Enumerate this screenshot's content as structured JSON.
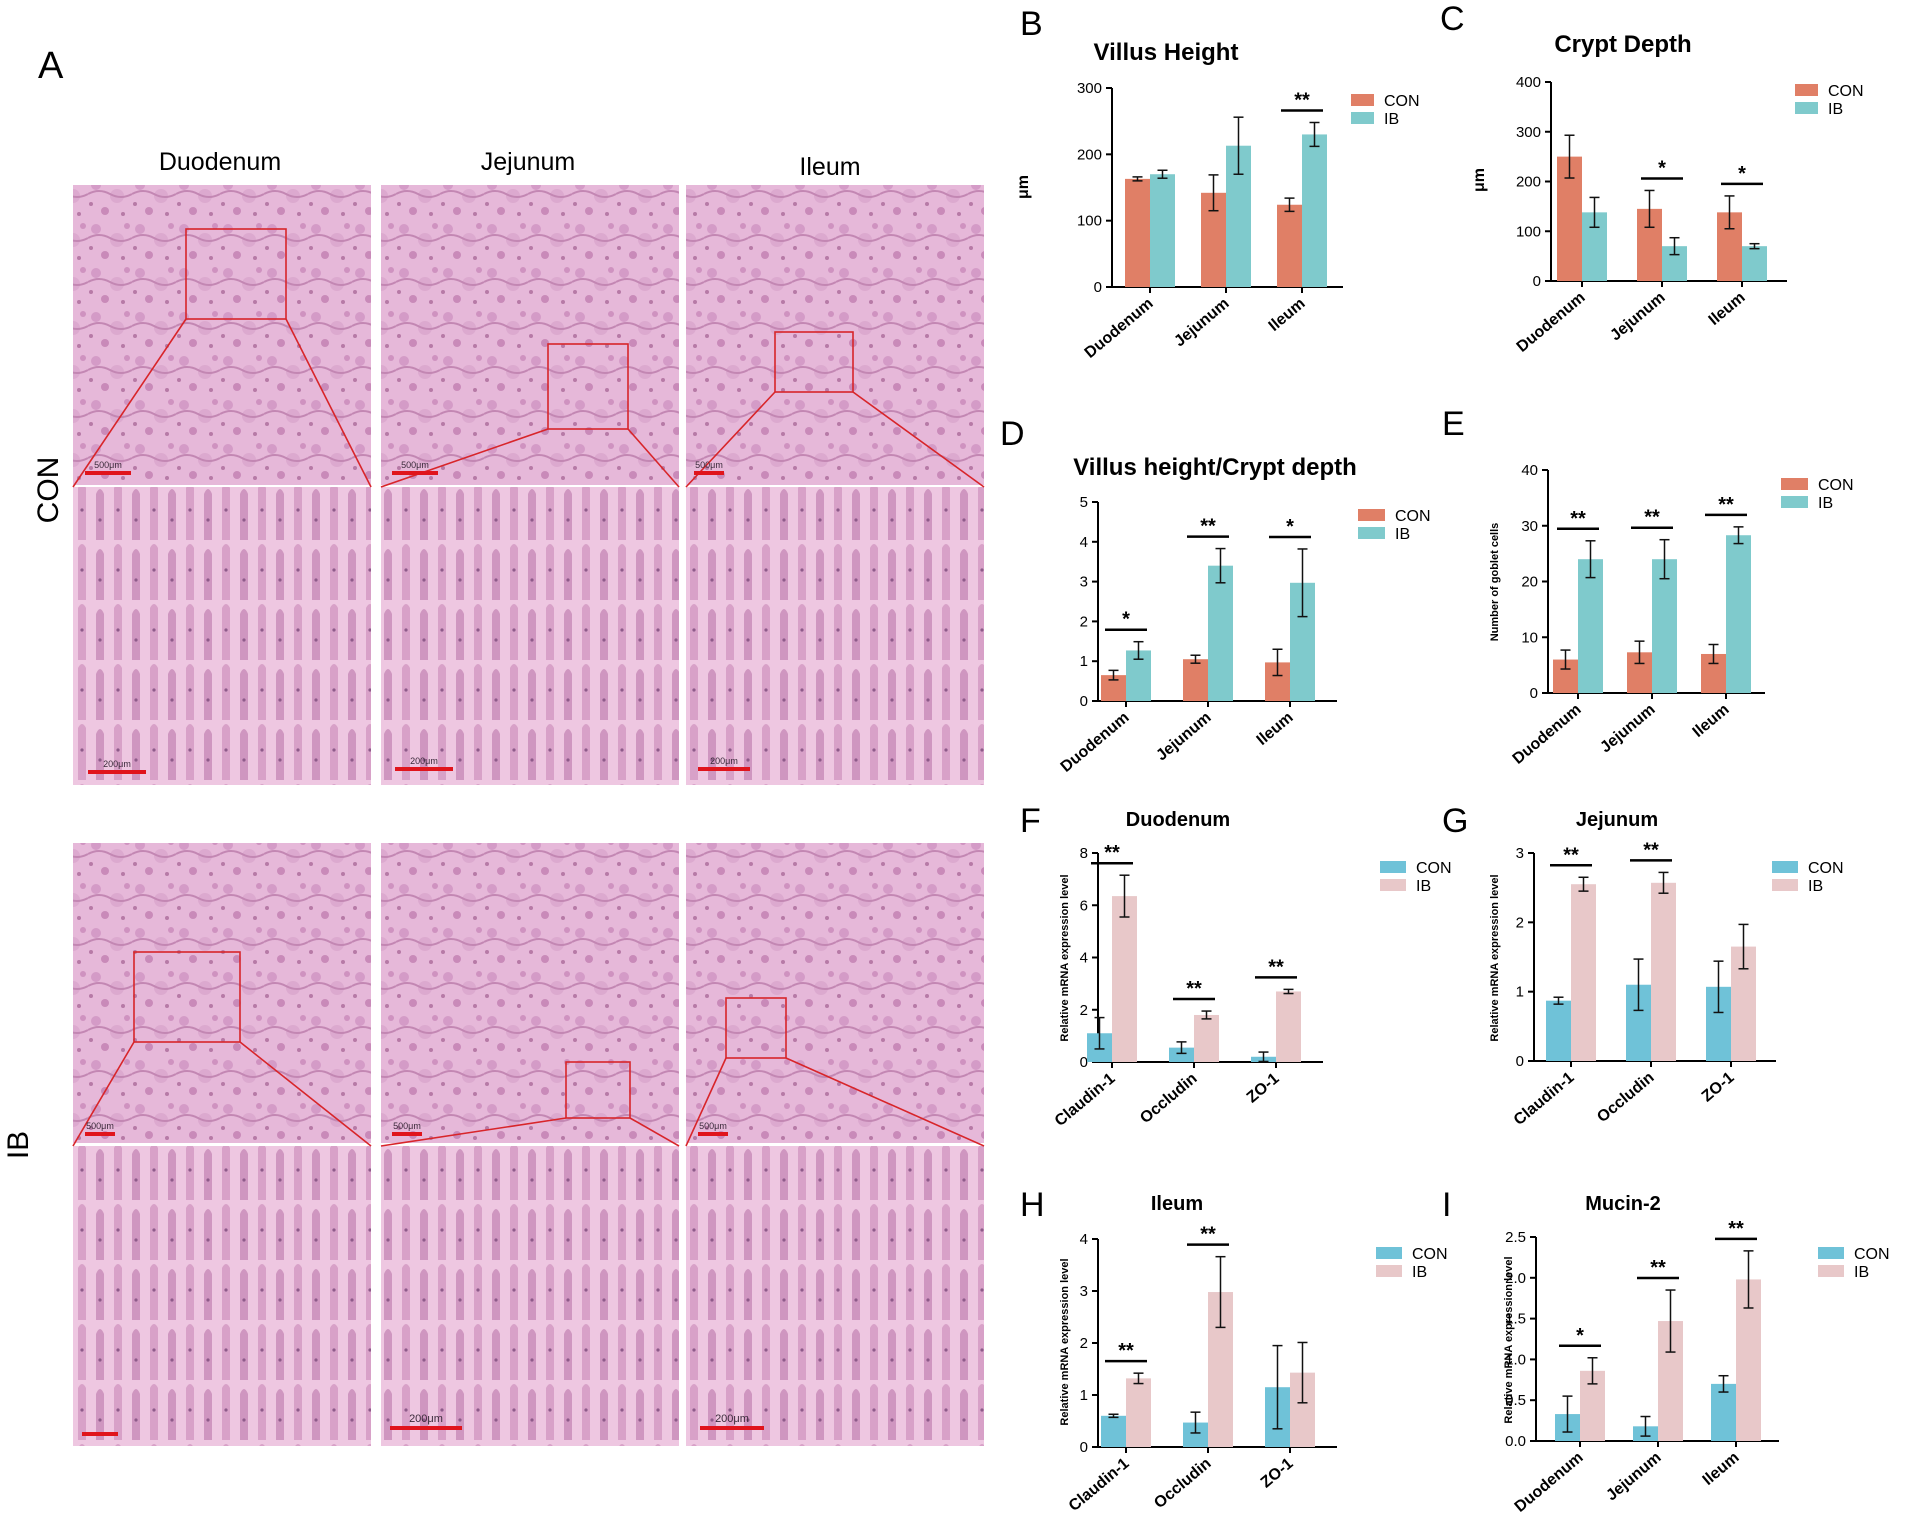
{
  "histology": {
    "panel_letter": "A",
    "columns": [
      "Duodenum",
      "Jejunum",
      "Ileum"
    ],
    "rows": [
      "CON",
      "IB"
    ],
    "scale_overview": [
      "500μm",
      "500μm",
      "500μm"
    ],
    "scale_detail": [
      "200μm",
      "200μm",
      "200μm"
    ]
  },
  "colors": {
    "con_morph": "#e07f66",
    "ib_morph": "#7fcacc",
    "con_mrna": "#6fc2d8",
    "ib_mrna": "#e8c8c9",
    "bracket": "#000000"
  },
  "chart_data": [
    {
      "id": "B",
      "type": "bar",
      "title": "Villus Height",
      "ylabel": "μm",
      "xlabel": "",
      "categories": [
        "Duodenum",
        "Jejunum",
        "Ileum"
      ],
      "ylim": [
        0,
        300
      ],
      "yticks": [
        "0",
        "100",
        "200",
        "300"
      ],
      "series": [
        {
          "name": "CON",
          "values": [
            163,
            142,
            124
          ],
          "errors": [
            3,
            27,
            10
          ]
        },
        {
          "name": "IB",
          "values": [
            170,
            213,
            230
          ],
          "errors": [
            6,
            43,
            18
          ]
        }
      ],
      "significance": [
        "",
        "",
        "**"
      ],
      "legend": "top-right"
    },
    {
      "id": "C",
      "type": "bar",
      "title": "Crypt Depth",
      "ylabel": "μm",
      "xlabel": "",
      "categories": [
        "Duodenum",
        "Jejunum",
        "Ileum"
      ],
      "ylim": [
        0,
        400
      ],
      "yticks": [
        "0",
        "100",
        "200",
        "300",
        "400"
      ],
      "series": [
        {
          "name": "CON",
          "values": [
            250,
            145,
            138
          ],
          "errors": [
            43,
            37,
            33
          ]
        },
        {
          "name": "IB",
          "values": [
            138,
            70,
            70
          ],
          "errors": [
            30,
            17,
            5
          ]
        }
      ],
      "significance": [
        "",
        "*",
        "*"
      ],
      "legend": "top-right"
    },
    {
      "id": "D",
      "type": "bar",
      "title": "Villus height/Crypt depth",
      "ylabel": "",
      "xlabel": "",
      "categories": [
        "Duodenum",
        "Jejunum",
        "Ileum"
      ],
      "ylim": [
        0,
        5
      ],
      "yticks": [
        "0",
        "1",
        "2",
        "3",
        "4",
        "5"
      ],
      "series": [
        {
          "name": "CON",
          "values": [
            0.65,
            1.05,
            0.97
          ],
          "errors": [
            0.12,
            0.1,
            0.33
          ]
        },
        {
          "name": "IB",
          "values": [
            1.27,
            3.4,
            2.97
          ],
          "errors": [
            0.22,
            0.43,
            0.85
          ]
        }
      ],
      "significance": [
        "*",
        "**",
        "*"
      ],
      "legend": "top-right"
    },
    {
      "id": "E",
      "type": "bar",
      "title": "",
      "ylabel": "Number of goblet cells",
      "xlabel": "",
      "categories": [
        "Duodenum",
        "Jejunum",
        "Ileum"
      ],
      "ylim": [
        0,
        40
      ],
      "yticks": [
        "0",
        "10",
        "20",
        "30",
        "40"
      ],
      "series": [
        {
          "name": "CON",
          "values": [
            6,
            7.3,
            7
          ],
          "errors": [
            1.7,
            2,
            1.7
          ]
        },
        {
          "name": "IB",
          "values": [
            24,
            24,
            28.3
          ],
          "errors": [
            3.3,
            3.5,
            1.5
          ]
        }
      ],
      "significance": [
        "**",
        "**",
        "**"
      ],
      "legend": "top-right"
    },
    {
      "id": "F",
      "type": "bar",
      "title": "Duodenum",
      "ylabel": "Relative mRNA expression level",
      "xlabel": "",
      "categories": [
        "Claudin-1",
        "Occludin",
        "ZO-1"
      ],
      "ylim": [
        0,
        8
      ],
      "yticks": [
        "0",
        "2",
        "4",
        "6",
        "8"
      ],
      "series": [
        {
          "name": "CON",
          "values": [
            1.1,
            0.55,
            0.2
          ],
          "errors": [
            0.6,
            0.22,
            0.18
          ]
        },
        {
          "name": "IB",
          "values": [
            6.35,
            1.8,
            2.7
          ],
          "errors": [
            0.8,
            0.15,
            0.08
          ]
        }
      ],
      "significance": [
        "**",
        "**",
        "**"
      ],
      "legend": "top-right"
    },
    {
      "id": "G",
      "type": "bar",
      "title": "Jejunum",
      "ylabel": "Relative mRNA expression level",
      "xlabel": "",
      "categories": [
        "Claudin-1",
        "Occludin",
        "ZO-1"
      ],
      "ylim": [
        0,
        3
      ],
      "yticks": [
        "0",
        "1",
        "2",
        "3"
      ],
      "series": [
        {
          "name": "CON",
          "values": [
            0.87,
            1.1,
            1.07
          ],
          "errors": [
            0.05,
            0.37,
            0.37
          ]
        },
        {
          "name": "IB",
          "values": [
            2.55,
            2.57,
            1.65
          ],
          "errors": [
            0.1,
            0.15,
            0.32
          ]
        }
      ],
      "significance": [
        "**",
        "**",
        ""
      ],
      "legend": "top-right"
    },
    {
      "id": "H",
      "type": "bar",
      "title": "Ileum",
      "ylabel": "Relative mRNA expression level",
      "xlabel": "",
      "categories": [
        "Claudin-1",
        "Occludin",
        "ZO-1"
      ],
      "ylim": [
        0,
        4
      ],
      "yticks": [
        "0",
        "1",
        "2",
        "3",
        "4"
      ],
      "series": [
        {
          "name": "CON",
          "values": [
            0.6,
            0.47,
            1.15
          ],
          "errors": [
            0.03,
            0.2,
            0.8
          ]
        },
        {
          "name": "IB",
          "values": [
            1.32,
            2.98,
            1.43
          ],
          "errors": [
            0.1,
            0.68,
            0.58
          ]
        }
      ],
      "significance": [
        "**",
        "**",
        ""
      ],
      "legend": "top-right"
    },
    {
      "id": "I",
      "type": "bar",
      "title": "Mucin-2",
      "ylabel": "Relative mRNA expression level",
      "xlabel": "",
      "categories": [
        "Duodenum",
        "Jejunum",
        "Ileum"
      ],
      "ylim": [
        0,
        2.5
      ],
      "yticks": [
        "0.0",
        "0.5",
        "1.0",
        "1.5",
        "2.0",
        "2.5"
      ],
      "series": [
        {
          "name": "CON",
          "values": [
            0.33,
            0.18,
            0.7
          ],
          "errors": [
            0.22,
            0.12,
            0.1
          ]
        },
        {
          "name": "IB",
          "values": [
            0.86,
            1.47,
            1.98
          ],
          "errors": [
            0.16,
            0.38,
            0.35
          ]
        }
      ],
      "significance": [
        "*",
        "**",
        "**"
      ],
      "legend": "top-right"
    }
  ]
}
